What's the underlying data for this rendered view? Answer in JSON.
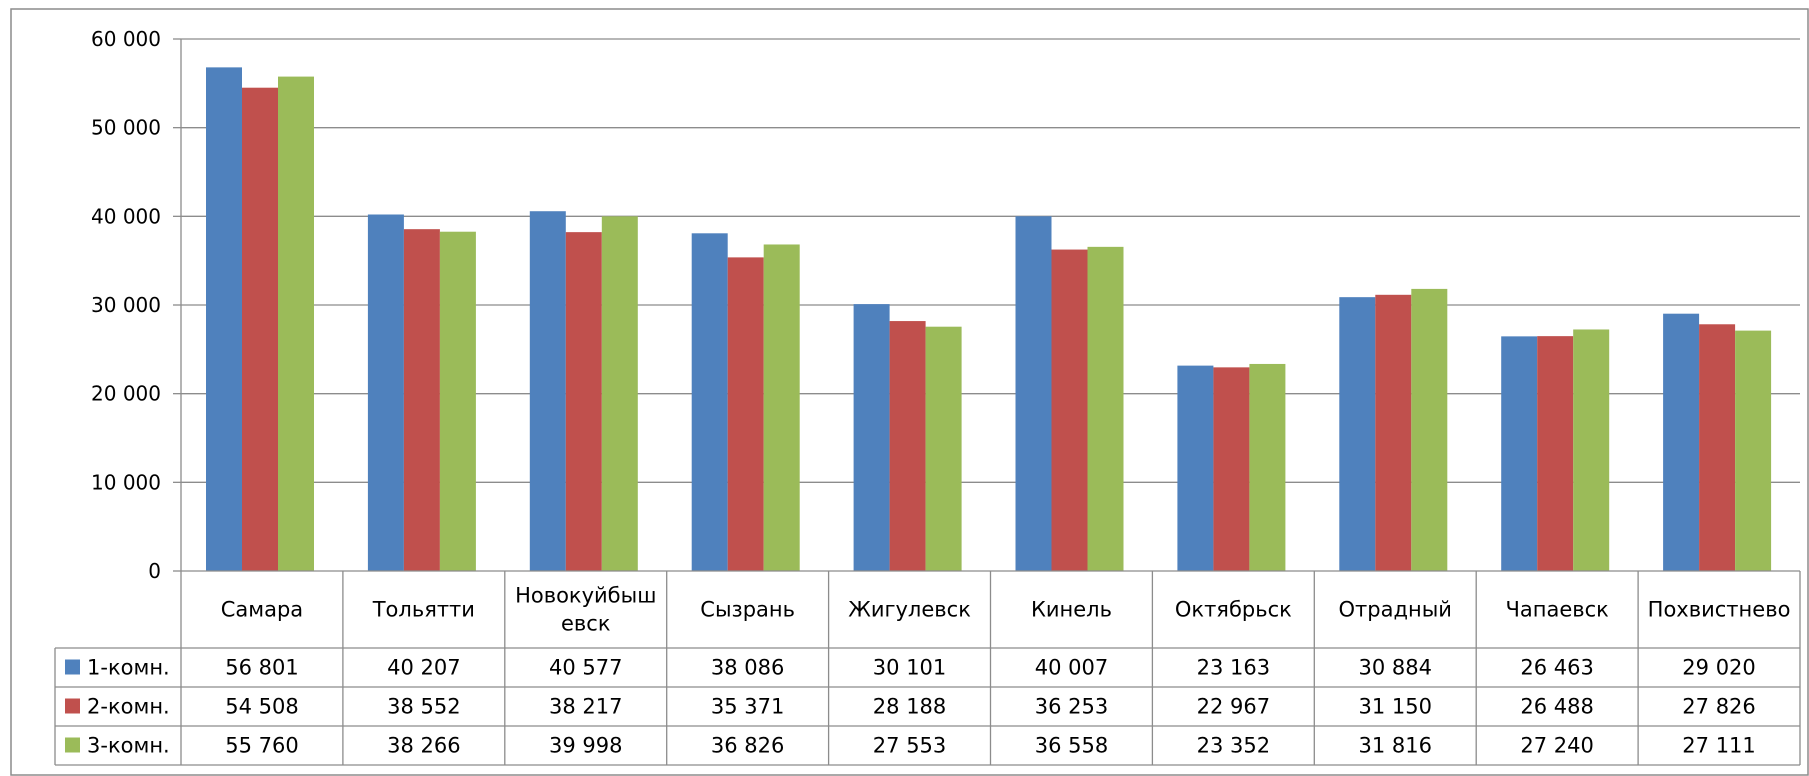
{
  "chart_data": {
    "type": "bar",
    "title": "",
    "xlabel": "",
    "ylabel": "",
    "ylim": [
      0,
      60000
    ],
    "y_ticks": [
      0,
      10000,
      20000,
      30000,
      40000,
      50000,
      60000
    ],
    "y_tick_labels": [
      "0",
      "10 000",
      "20 000",
      "30 000",
      "40 000",
      "50 000",
      "60 000"
    ],
    "grid": true,
    "legend": "data table, left",
    "categories": [
      "Самара",
      "Тольятти",
      "Новокуйбышевск",
      "Сызрань",
      "Жигулевск",
      "Кинель",
      "Октябрьск",
      "Отрадный",
      "Чапаевск",
      "Похвистнево"
    ],
    "category_display_lines": [
      [
        "Самара"
      ],
      [
        "Тольятти"
      ],
      [
        "Новокуйбыш",
        "евск"
      ],
      [
        "Сызрань"
      ],
      [
        "Жигулевск"
      ],
      [
        "Кинель"
      ],
      [
        "Октябрьск"
      ],
      [
        "Отрадный"
      ],
      [
        "Чапаевск"
      ],
      [
        "Похвистнево"
      ]
    ],
    "series": [
      {
        "name": "1-комн.",
        "color": "#4F81BD",
        "values": [
          56801,
          40207,
          40577,
          38086,
          30101,
          40007,
          23163,
          30884,
          26463,
          29020
        ],
        "labels": [
          "56 801",
          "40 207",
          "40 577",
          "38 086",
          "30 101",
          "40 007",
          "23 163",
          "30 884",
          "26 463",
          "29 020"
        ]
      },
      {
        "name": "2-комн.",
        "color": "#C0504D",
        "values": [
          54508,
          38552,
          38217,
          35371,
          28188,
          36253,
          22967,
          31150,
          26488,
          27826
        ],
        "labels": [
          "54 508",
          "38 552",
          "38 217",
          "35 371",
          "28 188",
          "36 253",
          "22 967",
          "31 150",
          "26 488",
          "27 826"
        ]
      },
      {
        "name": "3-комн.",
        "color": "#9BBB59",
        "values": [
          55760,
          38266,
          39998,
          36826,
          27553,
          36558,
          23352,
          31816,
          27240,
          27111
        ],
        "labels": [
          "55 760",
          "38 266",
          "39 998",
          "36 826",
          "27 553",
          "36 558",
          "23 352",
          "31 816",
          "27 240",
          "27 111"
        ]
      }
    ]
  }
}
